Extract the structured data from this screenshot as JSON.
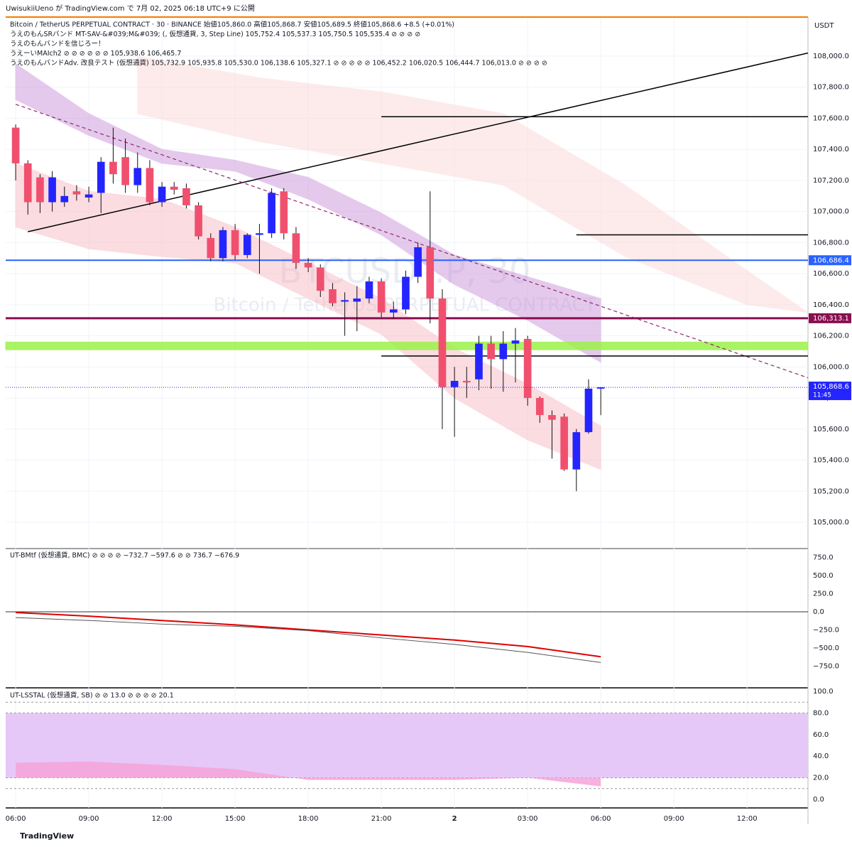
{
  "header": {
    "published": "UwisukiiUeno が TradingView.com で 7月 02, 2025 06:18 UTC+9 に公開",
    "currency": "USDT",
    "logo": "TradingView"
  },
  "legend": [
    "Bitcoin / TetherUS PERPETUAL CONTRACT · 30 · BINANCE  始値105,860.0 高値105,868.7 安値105,689.5 終値105,868.6 +8.5 (+0.01%)",
    "うえのもんSRバンド MT-SAV-&#039;M&#039; (, 仮想通貨, 3, Step Line)  105,752.4  105,537.3  105,750.5  105,535.4  ⊘ ⊘ ⊘ ⊘",
    "うえのもんバンドを信じろー！",
    "うえーいMAIch2  ⊘ ⊘ ⊘ ⊘ ⊘ ⊘  105,938.6  106,465.7",
    "うえのもんバンドAdv. 改良テスト (仮想通貨)  105,732.9  105,935.8  105,530.0  106,138.6  105,327.1  ⊘ ⊘ ⊘ ⊘ ⊘  106,452.2  106,020.5  106,444.7  106,013.0  ⊘ ⊘ ⊘ ⊘"
  ],
  "watermark": [
    "BTCUSDT.P, 30",
    "Bitcoin / TetherUS PERPETUAL CONTRACT"
  ],
  "last_price": {
    "value": 105868.6,
    "label": "105,868.6",
    "countdown": "11:45"
  },
  "chart_data": [
    {
      "type": "candlestick",
      "up_color": "#2424ff",
      "down_color": "#f0506e",
      "xlim": [
        -0.82,
        65.0
      ],
      "xticks": [
        {
          "value": 0,
          "label": "06:00"
        },
        {
          "value": 6,
          "label": "09:00"
        },
        {
          "value": 12,
          "label": "12:00"
        },
        {
          "value": 18,
          "label": "15:00"
        },
        {
          "value": 24,
          "label": "18:00"
        },
        {
          "value": 30,
          "label": "21:00"
        },
        {
          "value": 36,
          "label": "2"
        },
        {
          "value": 42,
          "label": "03:00"
        },
        {
          "value": 48,
          "label": "06:00"
        },
        {
          "value": 54,
          "label": "09:00"
        },
        {
          "value": 60,
          "label": "12:00"
        }
      ],
      "ylim": [
        104840,
        108247
      ],
      "yticks": [
        {
          "value": 105000,
          "label": "105,000.0"
        },
        {
          "value": 105200,
          "label": "105,200.0"
        },
        {
          "value": 105400,
          "label": "105,400.0"
        },
        {
          "value": 105600,
          "label": "105,600.0"
        },
        {
          "value": 105800,
          "label": "105,800.0"
        },
        {
          "value": 106000,
          "label": "106,000.0"
        },
        {
          "value": 106200,
          "label": "106,200.0"
        },
        {
          "value": 106400,
          "label": "106,400.0"
        },
        {
          "value": 106600,
          "label": "106,600.0"
        },
        {
          "value": 106800,
          "label": "106,800.0"
        },
        {
          "value": 107000,
          "label": "107,000.0"
        },
        {
          "value": 107200,
          "label": "107,200.0"
        },
        {
          "value": 107400,
          "label": "107,400.0"
        },
        {
          "value": 107600,
          "label": "107,600.0"
        },
        {
          "value": 107800,
          "label": "107,800.0"
        },
        {
          "value": 108000,
          "label": "108,000.0"
        }
      ],
      "grid": true,
      "open": [
        107540,
        107310,
        107220,
        107060,
        107060,
        107130,
        107090,
        107120,
        107320,
        107350,
        107170,
        107280,
        107060,
        107160,
        107150,
        107040,
        106830,
        106700,
        106880,
        106720,
        106850,
        106860,
        107130,
        106860,
        106670,
        106640,
        106500,
        106420,
        106420,
        106440,
        106550,
        106350,
        106370,
        106580,
        106770,
        106440,
        105870,
        105910,
        105920,
        106150,
        106050,
        106150,
        106180,
        105800,
        105690,
        105680,
        105340,
        105580,
        105860
      ],
      "high": [
        107560,
        107330,
        107240,
        107260,
        107160,
        107170,
        107160,
        107350,
        107540,
        107470,
        107380,
        107330,
        107190,
        107190,
        107180,
        107060,
        106860,
        106900,
        106920,
        106860,
        106920,
        107150,
        107150,
        106900,
        106700,
        106660,
        106540,
        106480,
        106520,
        106580,
        106570,
        106420,
        106620,
        106800,
        107130,
        106500,
        106000,
        106000,
        106200,
        106200,
        106230,
        106250,
        106200,
        105810,
        105720,
        105700,
        105600,
        105920,
        105868.7
      ],
      "low": [
        107200,
        106980,
        106990,
        107000,
        107030,
        107070,
        107060,
        106990,
        107180,
        107120,
        107120,
        107040,
        107030,
        107110,
        107020,
        106820,
        106680,
        106680,
        106690,
        106700,
        106600,
        106830,
        106820,
        106630,
        106610,
        106450,
        106390,
        106200,
        106230,
        106410,
        106320,
        106310,
        106340,
        106540,
        106280,
        105600,
        105550,
        105800,
        105850,
        105860,
        105840,
        105900,
        105750,
        105640,
        105410,
        105330,
        105200,
        105570,
        105689.5
      ],
      "close": [
        107310,
        107060,
        107060,
        107220,
        107100,
        107110,
        107110,
        107320,
        107240,
        107170,
        107280,
        107060,
        107160,
        107140,
        107040,
        106840,
        106700,
        106880,
        106720,
        106850,
        106860,
        107120,
        106860,
        106670,
        106640,
        106490,
        106410,
        106430,
        106440,
        106550,
        106350,
        106370,
        106580,
        106770,
        106440,
        105870,
        105910,
        105900,
        106150,
        106050,
        106150,
        106170,
        105800,
        105690,
        105660,
        105340,
        105580,
        105860,
        105868.6
      ],
      "bands": [
        {
          "color": "#fbd5d5",
          "x": [
            10,
            20,
            30,
            40,
            50,
            60,
            65
          ],
          "upper": [
            108000,
            107860,
            107770,
            107630,
            107170,
            106620,
            106350
          ],
          "lower": [
            107630,
            107450,
            107310,
            107170,
            106710,
            106400,
            106350
          ]
        },
        {
          "color": "#c58ad6",
          "x": [
            0,
            6,
            12,
            18,
            24,
            30,
            36,
            42,
            48
          ],
          "upper": [
            107950,
            107630,
            107400,
            107330,
            107220,
            106990,
            106720,
            106580,
            106440
          ],
          "lower": [
            107720,
            107490,
            107310,
            107260,
            107080,
            106850,
            106530,
            106300,
            106030
          ]
        },
        {
          "color": "#f7b3bd",
          "x": [
            0,
            6,
            12,
            18,
            24,
            30,
            36,
            42,
            48
          ],
          "upper": [
            107310,
            107130,
            107080,
            106900,
            106670,
            106440,
            106120,
            105890,
            105620
          ],
          "lower": [
            106900,
            106760,
            106710,
            106670,
            106440,
            106210,
            105800,
            105530,
            105340
          ]
        },
        {
          "color": "#9cf24a",
          "x": [
            -0.82,
            65.0
          ],
          "upper": [
            106160,
            106160
          ],
          "lower": [
            106110,
            106110
          ]
        }
      ],
      "drawings": [
        {
          "color": "#000000",
          "dash": false,
          "x": [
            1,
            65.0
          ],
          "values": [
            106870,
            108020
          ]
        },
        {
          "color": "#8e2a6b",
          "dash": true,
          "x": [
            0,
            65.0
          ],
          "values": [
            107690,
            105930
          ]
        },
        {
          "color": "#000000",
          "dash": false,
          "x": [
            30,
            65.0
          ],
          "values": [
            107610,
            107610
          ]
        },
        {
          "color": "#000000",
          "dash": false,
          "x": [
            46,
            65.0
          ],
          "values": [
            106850,
            106850
          ]
        },
        {
          "color": "#000000",
          "dash": false,
          "x": [
            30,
            65.0
          ],
          "values": [
            106070,
            106070
          ]
        }
      ],
      "levels": [
        {
          "value": 106686.4,
          "label": "106,686.4",
          "color": "#2962ff"
        },
        {
          "value": 106313.1,
          "label": "106,313.1",
          "color": "#880e4f"
        }
      ]
    },
    {
      "type": "line",
      "title": "UT-BMtf (仮想通貨, BMC)  ⊘ ⊘ ⊘ ⊘  −732.7  −597.6  ⊘ ⊘  736.7  −676.9",
      "xlim": [
        -0.82,
        65.0
      ],
      "ylim": [
        -1020,
        843
      ],
      "yticks": [
        {
          "value": 750,
          "label": "750.0"
        },
        {
          "value": 500,
          "label": "500.0"
        },
        {
          "value": 250,
          "label": "250.0"
        },
        {
          "value": 0,
          "label": "0.0"
        },
        {
          "value": -250,
          "label": "−250.0"
        },
        {
          "value": -500,
          "label": "−500.0"
        },
        {
          "value": -750,
          "label": "−750.0"
        }
      ],
      "x": [
        0,
        6,
        12,
        18,
        24,
        30,
        36,
        42,
        48
      ],
      "series": [
        {
          "color": "#e00000",
          "values": [
            -10,
            -60,
            -120,
            -180,
            -250,
            -320,
            -390,
            -480,
            -620
          ]
        },
        {
          "color": "#555555",
          "values": [
            -80,
            -120,
            -170,
            -200,
            -260,
            -360,
            -450,
            -560,
            -700
          ]
        }
      ]
    },
    {
      "type": "area",
      "title": "UT-LSSTAL (仮想通貨, SB)  ⊘ ⊘  13.0  ⊘ ⊘ ⊘ ⊘  20.1",
      "xlim": [
        -0.82,
        65.0
      ],
      "ylim": [
        -6.6,
        102
      ],
      "yticks": [
        {
          "value": 100,
          "label": "100.0"
        },
        {
          "value": 80,
          "label": "80.0"
        },
        {
          "value": 60,
          "label": "60.0"
        },
        {
          "value": 40,
          "label": "40.0"
        },
        {
          "value": 20,
          "label": "20.0"
        },
        {
          "value": 0,
          "label": "0.0"
        }
      ],
      "zone": [
        20,
        80
      ],
      "zone_color": "#e6c8f8",
      "dashed_levels": [
        90,
        10
      ],
      "base": 20,
      "x": [
        0,
        6,
        12,
        18,
        24,
        30,
        36,
        42,
        48
      ],
      "series": [
        {
          "color": "#f4a3d8",
          "values": [
            34,
            35,
            32,
            28,
            18,
            18,
            18,
            20,
            12
          ]
        }
      ]
    }
  ]
}
